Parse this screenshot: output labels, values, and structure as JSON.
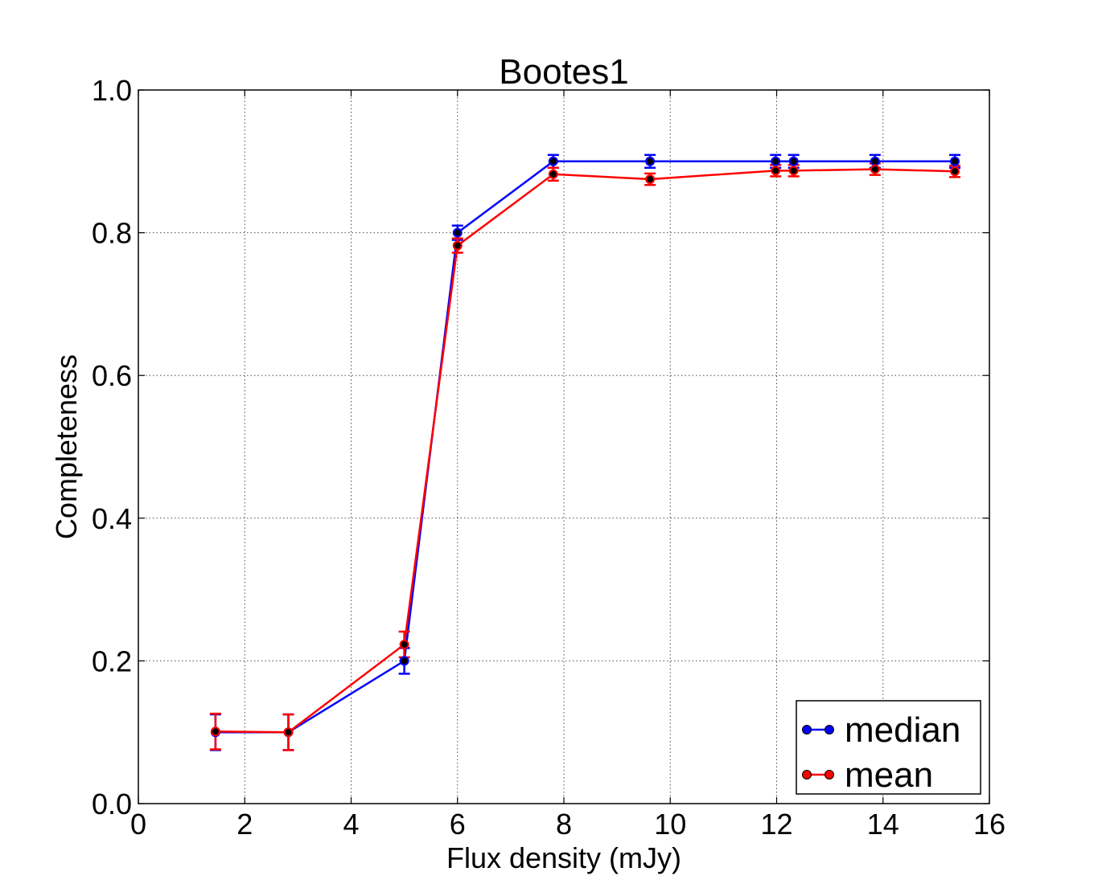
{
  "chart_data": {
    "type": "line",
    "title": "Bootes1",
    "xlabel": "Flux density (mJy)",
    "ylabel": "Completeness",
    "xlim": [
      0,
      16
    ],
    "ylim": [
      0,
      1.0
    ],
    "xticks": [
      0,
      2,
      4,
      6,
      8,
      10,
      12,
      14,
      16
    ],
    "yticks": [
      0.0,
      0.2,
      0.4,
      0.6,
      0.8,
      1.0
    ],
    "xtick_labels": [
      "0",
      "2",
      "4",
      "6",
      "8",
      "10",
      "12",
      "14",
      "16"
    ],
    "ytick_labels": [
      "0.0",
      "0.2",
      "0.4",
      "0.6",
      "0.8",
      "1.0"
    ],
    "grid": true,
    "legend_position": "bottom-right",
    "series": [
      {
        "name": "median",
        "color": "#0000ff",
        "x": [
          1.45,
          2.82,
          5.0,
          6.0,
          7.8,
          9.62,
          11.98,
          12.32,
          13.85,
          15.35
        ],
        "y": [
          0.1,
          0.1,
          0.2,
          0.8,
          0.9,
          0.9,
          0.9,
          0.9,
          0.9,
          0.9
        ],
        "err": [
          0.025,
          0.025,
          0.018,
          0.01,
          0.009,
          0.009,
          0.009,
          0.009,
          0.009,
          0.009
        ]
      },
      {
        "name": "mean",
        "color": "#ff0000",
        "x": [
          1.45,
          2.82,
          5.0,
          6.0,
          7.8,
          9.62,
          11.98,
          12.32,
          13.85,
          15.35
        ],
        "y": [
          0.101,
          0.1,
          0.223,
          0.782,
          0.882,
          0.875,
          0.887,
          0.887,
          0.889,
          0.886
        ],
        "err": [
          0.025,
          0.025,
          0.018,
          0.01,
          0.009,
          0.008,
          0.008,
          0.008,
          0.008,
          0.008
        ]
      }
    ]
  }
}
